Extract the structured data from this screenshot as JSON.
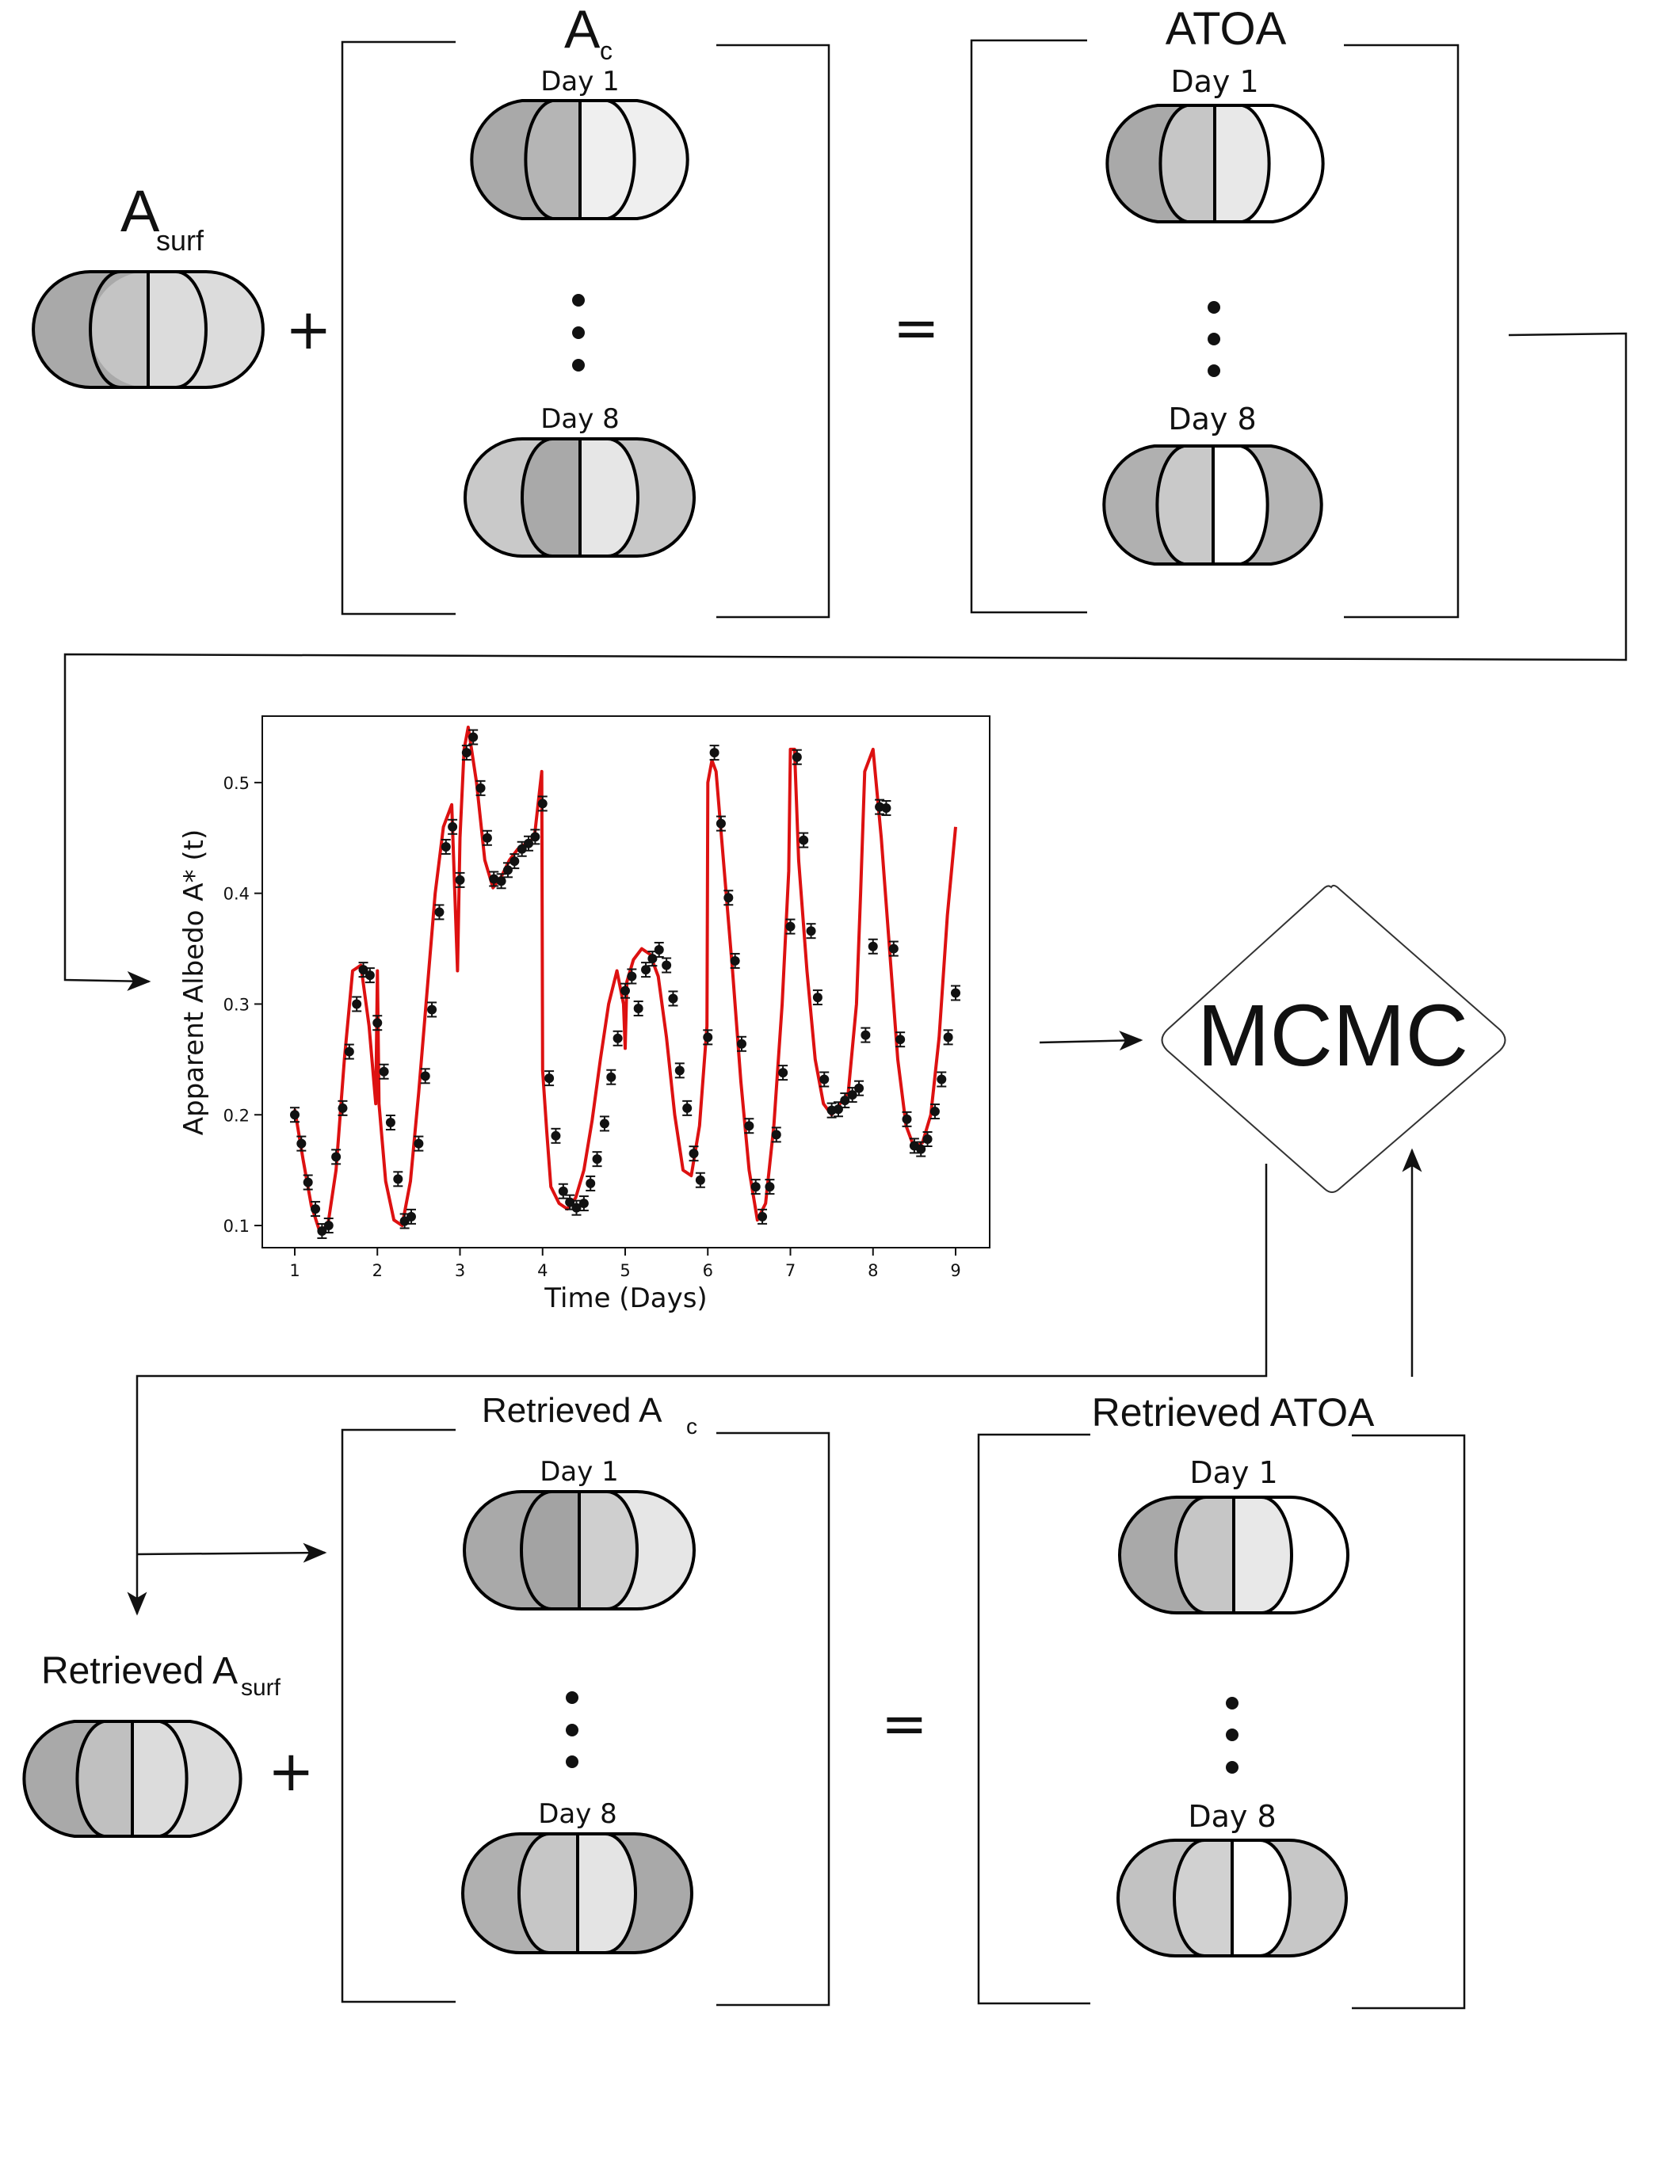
{
  "top": {
    "surface_label": {
      "main": "A",
      "sub": "surf"
    },
    "cloud_label": {
      "main": "A",
      "sub": "c"
    },
    "toa_label": "ATOA",
    "day_first": "Day 1",
    "day_last": "Day 8",
    "plus": "+",
    "equals": "="
  },
  "bottom": {
    "surface_label": {
      "main": "Retrieved A",
      "sub": "surf"
    },
    "cloud_label": {
      "main": "Retrieved A",
      "sub": "c"
    },
    "toa_label": "Retrieved ATOA",
    "day_first": "Day 1",
    "day_last": "Day 8",
    "plus": "+",
    "equals": "="
  },
  "mcmc_label": "MCMC",
  "colors": {
    "fit_line": "#dd1111",
    "points": "#111111",
    "dark_gray": "#a9a9a9",
    "mid_gray": "#c4c4c4",
    "light_gray": "#dcdcdc",
    "lighter_gray": "#ececec",
    "white": "#ffffff"
  },
  "chart_data": {
    "type": "scatter",
    "xlabel": "Time (Days)",
    "ylabel": "Apparent Albedo A* (t)",
    "xlim": [
      1,
      9
    ],
    "ylim": [
      0.08,
      0.56
    ],
    "x_ticks": [
      "1",
      "2",
      "3",
      "4",
      "5",
      "6",
      "7",
      "8",
      "9"
    ],
    "y_ticks": [
      "0.1",
      "0.2",
      "0.3",
      "0.4",
      "0.5"
    ],
    "grid": false,
    "series": [
      {
        "kind": "points_with_errorbars",
        "x": [
          1.0,
          1.08,
          1.16,
          1.25,
          1.33,
          1.41,
          1.5,
          1.58,
          1.66,
          1.75,
          1.83,
          1.91,
          2.0,
          2.08,
          2.16,
          2.25,
          2.33,
          2.41,
          2.5,
          2.58,
          2.66,
          2.75,
          2.83,
          2.91,
          3.0,
          3.08,
          3.16,
          3.25,
          3.33,
          3.41,
          3.5,
          3.58,
          3.66,
          3.75,
          3.83,
          3.91,
          4.0,
          4.08,
          4.16,
          4.25,
          4.33,
          4.41,
          4.5,
          4.58,
          4.66,
          4.75,
          4.83,
          4.91,
          5.0,
          5.08,
          5.16,
          5.25,
          5.33,
          5.41,
          5.5,
          5.58,
          5.66,
          5.75,
          5.83,
          5.91,
          6.0,
          6.08,
          6.16,
          6.25,
          6.33,
          6.41,
          6.5,
          6.58,
          6.66,
          6.75,
          6.83,
          6.91,
          7.0,
          7.08,
          7.16,
          7.25,
          7.33,
          7.41,
          7.5,
          7.58,
          7.66,
          7.75,
          7.83,
          7.91,
          8.0,
          8.08,
          8.16,
          8.25,
          8.33,
          8.41,
          8.5,
          8.58,
          8.66,
          8.75,
          8.83,
          8.91,
          9.0
        ],
        "y": [
          0.2,
          0.174,
          0.139,
          0.115,
          0.095,
          0.1,
          0.162,
          0.206,
          0.257,
          0.3,
          0.331,
          0.326,
          0.283,
          0.239,
          0.193,
          0.142,
          0.104,
          0.108,
          0.174,
          0.235,
          0.295,
          0.383,
          0.442,
          0.46,
          0.412,
          0.527,
          0.541,
          0.495,
          0.45,
          0.413,
          0.411,
          0.421,
          0.429,
          0.44,
          0.445,
          0.451,
          0.481,
          0.233,
          0.181,
          0.131,
          0.121,
          0.116,
          0.12,
          0.138,
          0.16,
          0.192,
          0.234,
          0.269,
          0.312,
          0.325,
          0.296,
          0.331,
          0.341,
          0.349,
          0.335,
          0.305,
          0.24,
          0.206,
          0.165,
          0.141,
          0.27,
          0.527,
          0.463,
          0.396,
          0.339,
          0.264,
          0.19,
          0.135,
          0.108,
          0.135,
          0.182,
          0.238,
          0.37,
          0.523,
          0.448,
          0.366,
          0.306,
          0.232,
          0.204,
          0.205,
          0.213,
          0.218,
          0.224,
          0.272,
          0.352,
          0.478,
          0.477,
          0.35,
          0.268,
          0.196,
          0.172,
          0.169,
          0.178,
          0.203,
          0.232,
          0.27,
          0.31
        ]
      },
      {
        "kind": "fit_line",
        "x": [
          1.0,
          1.1,
          1.2,
          1.3,
          1.4,
          1.5,
          1.6,
          1.7,
          1.8,
          1.9,
          1.98,
          2.0,
          2.02,
          2.1,
          2.2,
          2.3,
          2.4,
          2.5,
          2.6,
          2.7,
          2.8,
          2.9,
          2.97,
          3.0,
          3.05,
          3.1,
          3.2,
          3.3,
          3.4,
          3.5,
          3.6,
          3.7,
          3.8,
          3.9,
          3.99,
          4.0,
          4.05,
          4.1,
          4.2,
          4.3,
          4.4,
          4.5,
          4.6,
          4.7,
          4.8,
          4.9,
          4.98,
          5.0,
          5.02,
          5.1,
          5.2,
          5.3,
          5.4,
          5.5,
          5.6,
          5.7,
          5.8,
          5.9,
          5.99,
          6.0,
          6.05,
          6.1,
          6.2,
          6.3,
          6.4,
          6.5,
          6.6,
          6.7,
          6.8,
          6.9,
          6.98,
          7.0,
          7.05,
          7.1,
          7.2,
          7.3,
          7.4,
          7.5,
          7.6,
          7.7,
          7.8,
          7.85,
          7.9,
          8.0,
          8.1,
          8.2,
          8.3,
          8.4,
          8.5,
          8.6,
          8.7,
          8.8,
          8.9,
          9.0
        ],
        "y": [
          0.205,
          0.16,
          0.118,
          0.095,
          0.1,
          0.15,
          0.25,
          0.33,
          0.335,
          0.28,
          0.21,
          0.33,
          0.21,
          0.14,
          0.105,
          0.1,
          0.14,
          0.22,
          0.31,
          0.4,
          0.46,
          0.48,
          0.33,
          0.45,
          0.53,
          0.55,
          0.5,
          0.43,
          0.405,
          0.415,
          0.43,
          0.44,
          0.445,
          0.45,
          0.51,
          0.24,
          0.185,
          0.135,
          0.12,
          0.115,
          0.125,
          0.15,
          0.195,
          0.25,
          0.3,
          0.33,
          0.3,
          0.26,
          0.32,
          0.34,
          0.35,
          0.345,
          0.325,
          0.27,
          0.2,
          0.15,
          0.145,
          0.19,
          0.28,
          0.5,
          0.52,
          0.51,
          0.42,
          0.33,
          0.23,
          0.15,
          0.105,
          0.12,
          0.19,
          0.3,
          0.42,
          0.53,
          0.53,
          0.43,
          0.33,
          0.25,
          0.21,
          0.2,
          0.21,
          0.22,
          0.3,
          0.4,
          0.51,
          0.53,
          0.45,
          0.35,
          0.25,
          0.19,
          0.17,
          0.175,
          0.2,
          0.27,
          0.38,
          0.46
        ]
      }
    ]
  }
}
